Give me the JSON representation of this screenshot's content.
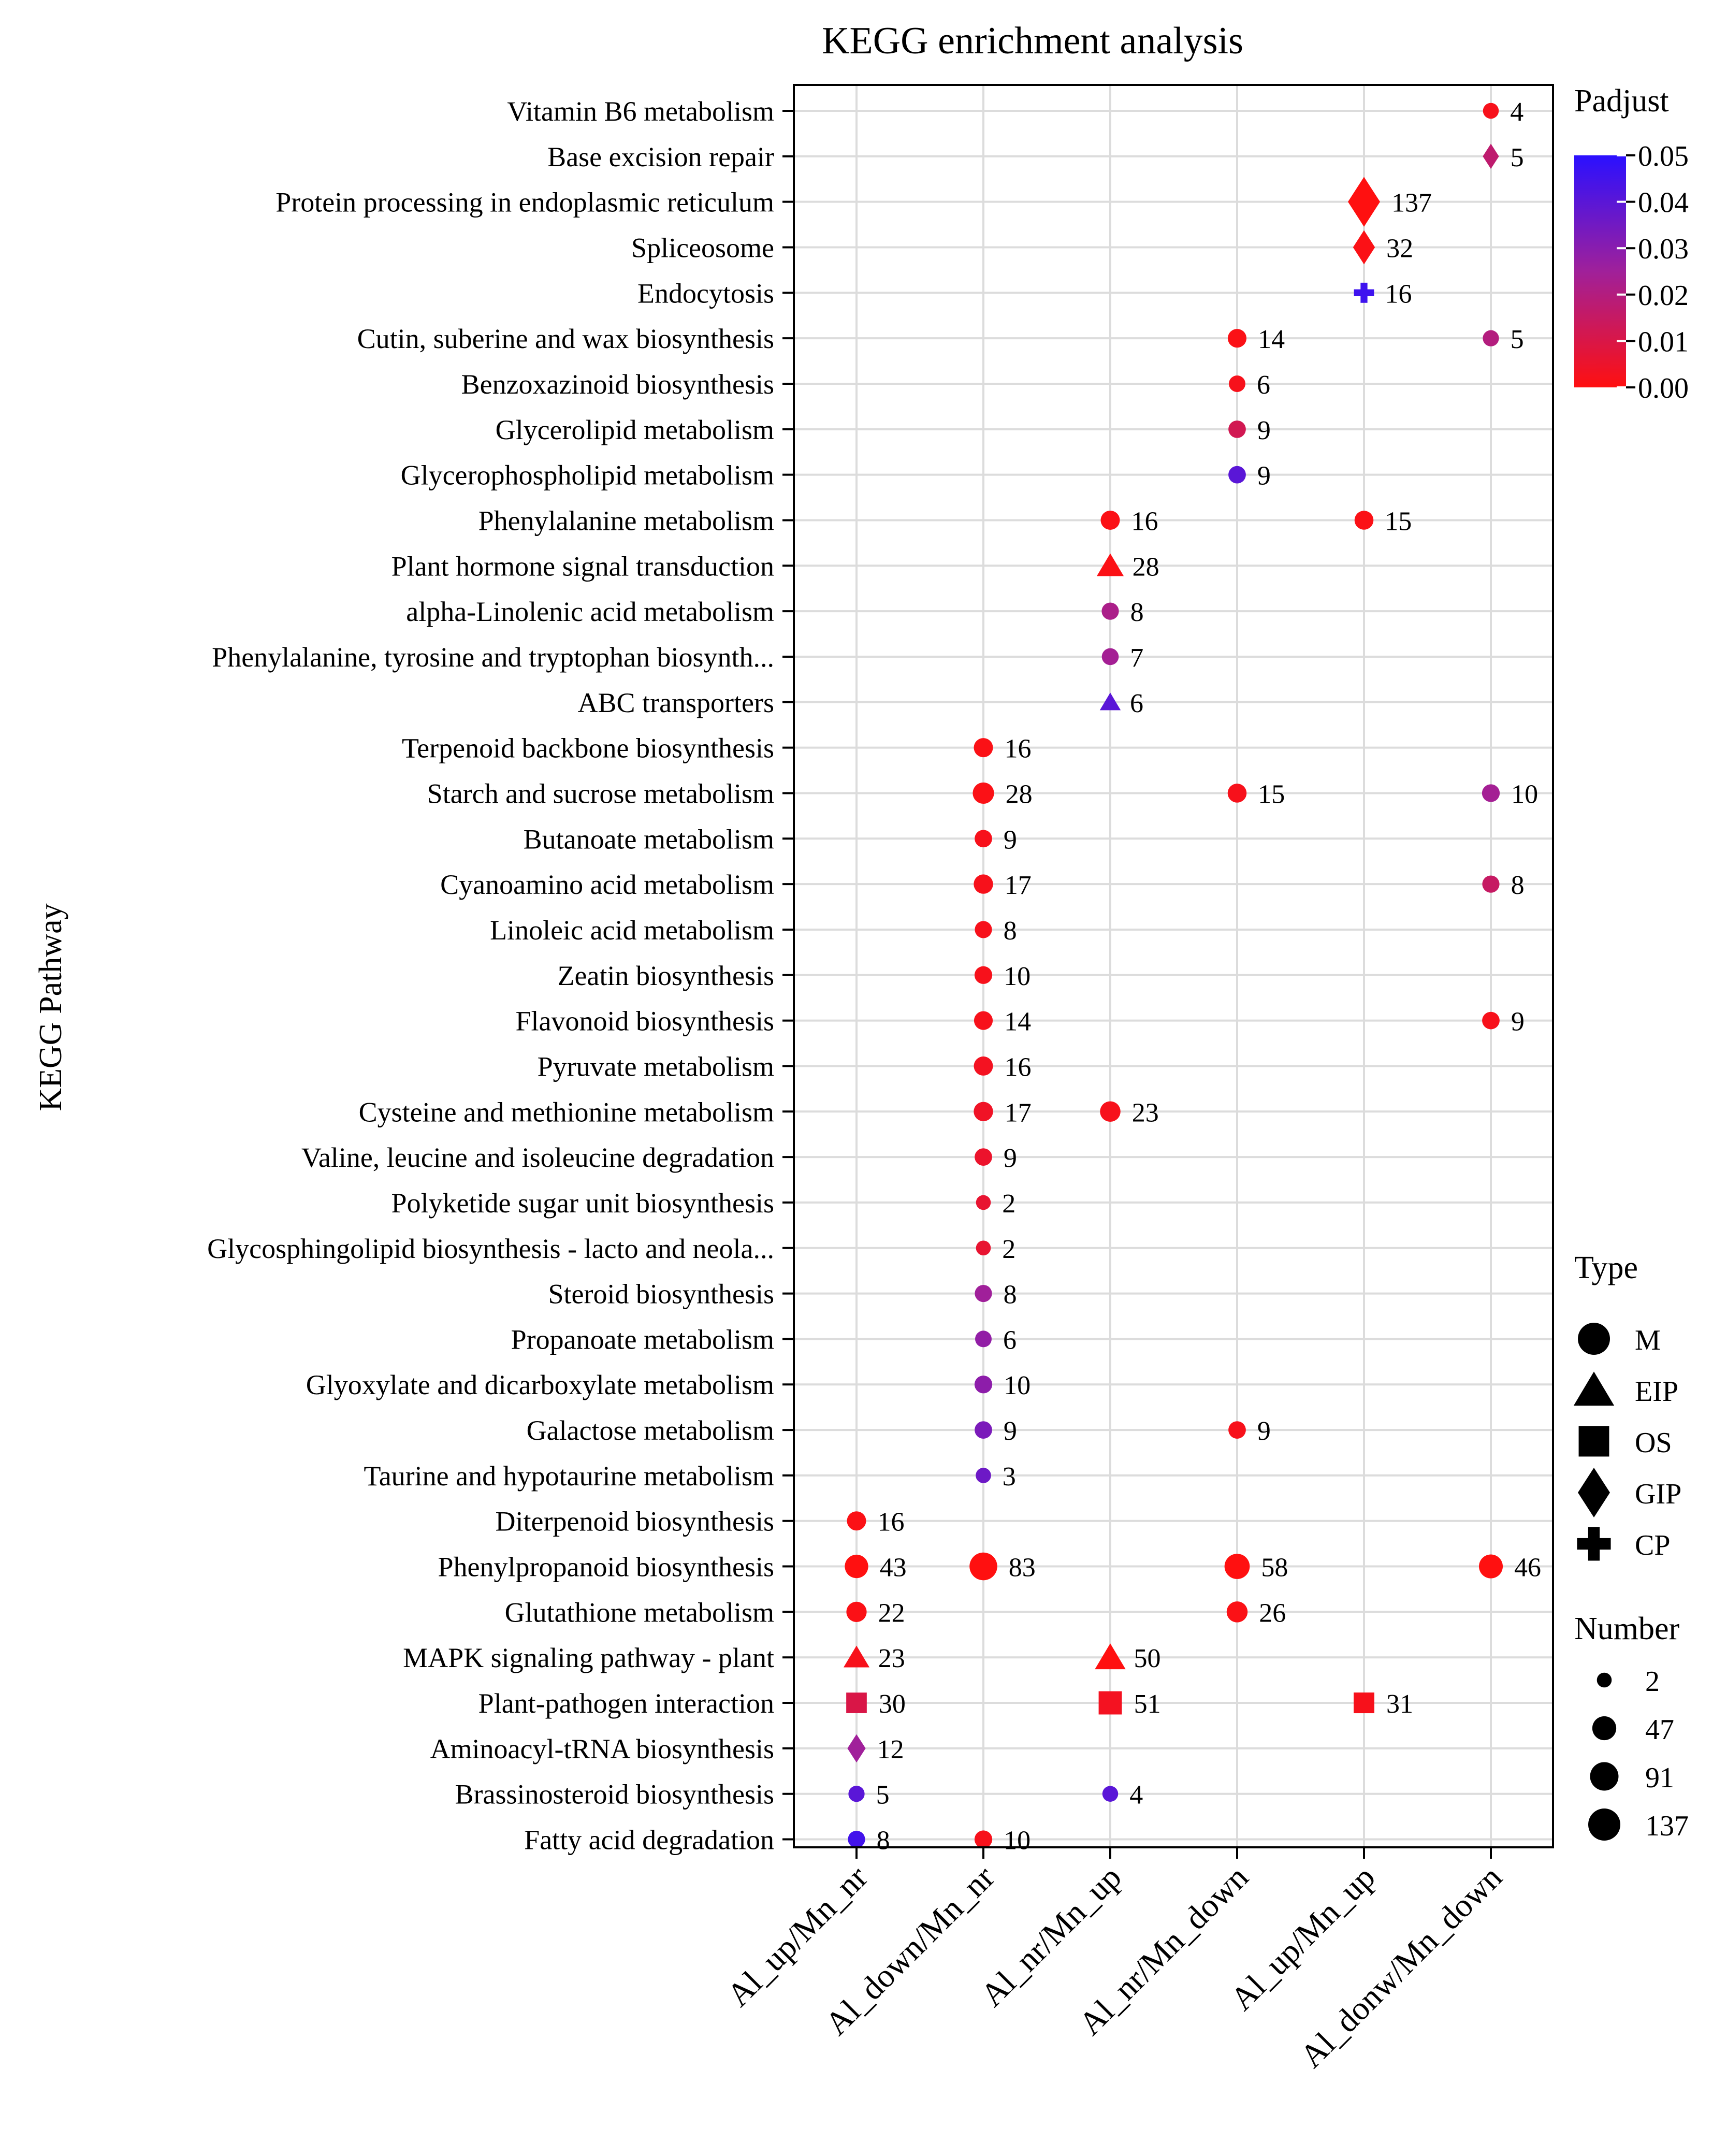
{
  "chart_data": {
    "type": "scatter",
    "title": "KEGG enrichment analysis",
    "ylabel": "KEGG Pathway",
    "xlabel": "",
    "grid": true,
    "groups": [
      "Al_up/Mn_nr",
      "Al_down/Mn_nr",
      "Al_nr/Mn_up",
      "Al_nr/Mn_down",
      "Al_up/Mn_up",
      "Al_donw/Mn_down"
    ],
    "pathways": [
      "Vitamin B6 metabolism",
      "Base excision repair",
      "Protein processing in endoplasmic reticulum",
      "Spliceosome",
      "Endocytosis",
      "Cutin, suberine and wax biosynthesis",
      "Benzoxazinoid biosynthesis",
      "Glycerolipid metabolism",
      "Glycerophospholipid metabolism",
      "Phenylalanine metabolism",
      "Plant hormone signal transduction",
      "alpha-Linolenic acid metabolism",
      "Phenylalanine, tyrosine and tryptophan biosynth...",
      "ABC transporters",
      "Terpenoid backbone biosynthesis",
      "Starch and sucrose metabolism",
      "Butanoate metabolism",
      "Cyanoamino acid metabolism",
      "Linoleic acid metabolism",
      "Zeatin biosynthesis",
      "Flavonoid biosynthesis",
      "Pyruvate metabolism",
      "Cysteine and methionine metabolism",
      "Valine, leucine and isoleucine degradation",
      "Polyketide sugar unit biosynthesis",
      "Glycosphingolipid biosynthesis - lacto and neola...",
      "Steroid biosynthesis",
      "Propanoate metabolism",
      "Glyoxylate and dicarboxylate metabolism",
      "Galactose metabolism",
      "Taurine and hypotaurine metabolism",
      "Diterpenoid biosynthesis",
      "Phenylpropanoid biosynthesis",
      "Glutathione metabolism",
      "MAPK signaling pathway - plant",
      "Plant-pathogen interaction",
      "Aminoacyl-tRNA biosynthesis",
      "Brassinosteroid biosynthesis",
      "Fatty acid degradation"
    ],
    "points": [
      {
        "pathway": 0,
        "group": 5,
        "number": 4,
        "padjust": 0.002,
        "type": "M"
      },
      {
        "pathway": 1,
        "group": 5,
        "number": 5,
        "padjust": 0.017,
        "type": "GIP"
      },
      {
        "pathway": 2,
        "group": 4,
        "number": 137,
        "padjust": 0.0,
        "type": "GIP"
      },
      {
        "pathway": 3,
        "group": 4,
        "number": 32,
        "padjust": 0.001,
        "type": "GIP"
      },
      {
        "pathway": 4,
        "group": 4,
        "number": 16,
        "padjust": 0.046,
        "type": "CP"
      },
      {
        "pathway": 5,
        "group": 3,
        "number": 14,
        "padjust": 0.001,
        "type": "M"
      },
      {
        "pathway": 5,
        "group": 5,
        "number": 5,
        "padjust": 0.02,
        "type": "M"
      },
      {
        "pathway": 6,
        "group": 3,
        "number": 6,
        "padjust": 0.002,
        "type": "M"
      },
      {
        "pathway": 7,
        "group": 3,
        "number": 9,
        "padjust": 0.012,
        "type": "M"
      },
      {
        "pathway": 8,
        "group": 3,
        "number": 9,
        "padjust": 0.04,
        "type": "M"
      },
      {
        "pathway": 9,
        "group": 2,
        "number": 16,
        "padjust": 0.001,
        "type": "M"
      },
      {
        "pathway": 9,
        "group": 4,
        "number": 15,
        "padjust": 0.001,
        "type": "M"
      },
      {
        "pathway": 10,
        "group": 2,
        "number": 28,
        "padjust": 0.001,
        "type": "EIP"
      },
      {
        "pathway": 11,
        "group": 2,
        "number": 8,
        "padjust": 0.022,
        "type": "M"
      },
      {
        "pathway": 12,
        "group": 2,
        "number": 7,
        "padjust": 0.024,
        "type": "M"
      },
      {
        "pathway": 13,
        "group": 2,
        "number": 6,
        "padjust": 0.04,
        "type": "EIP"
      },
      {
        "pathway": 14,
        "group": 1,
        "number": 16,
        "padjust": 0.001,
        "type": "M"
      },
      {
        "pathway": 15,
        "group": 1,
        "number": 28,
        "padjust": 0.001,
        "type": "M"
      },
      {
        "pathway": 15,
        "group": 3,
        "number": 15,
        "padjust": 0.002,
        "type": "M"
      },
      {
        "pathway": 15,
        "group": 5,
        "number": 10,
        "padjust": 0.024,
        "type": "M"
      },
      {
        "pathway": 16,
        "group": 1,
        "number": 9,
        "padjust": 0.002,
        "type": "M"
      },
      {
        "pathway": 17,
        "group": 1,
        "number": 17,
        "padjust": 0.002,
        "type": "M"
      },
      {
        "pathway": 17,
        "group": 5,
        "number": 8,
        "padjust": 0.015,
        "type": "M"
      },
      {
        "pathway": 18,
        "group": 1,
        "number": 8,
        "padjust": 0.002,
        "type": "M"
      },
      {
        "pathway": 19,
        "group": 1,
        "number": 10,
        "padjust": 0.002,
        "type": "M"
      },
      {
        "pathway": 20,
        "group": 1,
        "number": 14,
        "padjust": 0.002,
        "type": "M"
      },
      {
        "pathway": 20,
        "group": 5,
        "number": 9,
        "padjust": 0.002,
        "type": "M"
      },
      {
        "pathway": 21,
        "group": 1,
        "number": 16,
        "padjust": 0.003,
        "type": "M"
      },
      {
        "pathway": 22,
        "group": 1,
        "number": 17,
        "padjust": 0.004,
        "type": "M"
      },
      {
        "pathway": 22,
        "group": 2,
        "number": 23,
        "padjust": 0.002,
        "type": "M"
      },
      {
        "pathway": 23,
        "group": 1,
        "number": 9,
        "padjust": 0.005,
        "type": "M"
      },
      {
        "pathway": 24,
        "group": 1,
        "number": 2,
        "padjust": 0.006,
        "type": "M"
      },
      {
        "pathway": 25,
        "group": 1,
        "number": 2,
        "padjust": 0.006,
        "type": "M"
      },
      {
        "pathway": 26,
        "group": 1,
        "number": 8,
        "padjust": 0.025,
        "type": "M"
      },
      {
        "pathway": 27,
        "group": 1,
        "number": 6,
        "padjust": 0.028,
        "type": "M"
      },
      {
        "pathway": 28,
        "group": 1,
        "number": 10,
        "padjust": 0.029,
        "type": "M"
      },
      {
        "pathway": 29,
        "group": 1,
        "number": 9,
        "padjust": 0.033,
        "type": "M"
      },
      {
        "pathway": 29,
        "group": 3,
        "number": 9,
        "padjust": 0.002,
        "type": "M"
      },
      {
        "pathway": 30,
        "group": 1,
        "number": 3,
        "padjust": 0.036,
        "type": "M"
      },
      {
        "pathway": 31,
        "group": 0,
        "number": 16,
        "padjust": 0.001,
        "type": "M"
      },
      {
        "pathway": 32,
        "group": 0,
        "number": 43,
        "padjust": 0.0,
        "type": "M"
      },
      {
        "pathway": 32,
        "group": 1,
        "number": 83,
        "padjust": 0.0,
        "type": "M"
      },
      {
        "pathway": 32,
        "group": 3,
        "number": 58,
        "padjust": 0.0,
        "type": "M"
      },
      {
        "pathway": 32,
        "group": 5,
        "number": 46,
        "padjust": 0.0,
        "type": "M"
      },
      {
        "pathway": 33,
        "group": 0,
        "number": 22,
        "padjust": 0.001,
        "type": "M"
      },
      {
        "pathway": 33,
        "group": 3,
        "number": 26,
        "padjust": 0.001,
        "type": "M"
      },
      {
        "pathway": 34,
        "group": 0,
        "number": 23,
        "padjust": 0.002,
        "type": "EIP"
      },
      {
        "pathway": 34,
        "group": 2,
        "number": 50,
        "padjust": 0.0,
        "type": "EIP"
      },
      {
        "pathway": 35,
        "group": 0,
        "number": 30,
        "padjust": 0.01,
        "type": "OS"
      },
      {
        "pathway": 35,
        "group": 2,
        "number": 51,
        "padjust": 0.003,
        "type": "OS"
      },
      {
        "pathway": 35,
        "group": 4,
        "number": 31,
        "padjust": 0.002,
        "type": "OS"
      },
      {
        "pathway": 36,
        "group": 0,
        "number": 12,
        "padjust": 0.025,
        "type": "GIP"
      },
      {
        "pathway": 37,
        "group": 0,
        "number": 5,
        "padjust": 0.04,
        "type": "M"
      },
      {
        "pathway": 37,
        "group": 2,
        "number": 4,
        "padjust": 0.04,
        "type": "M"
      },
      {
        "pathway": 38,
        "group": 0,
        "number": 8,
        "padjust": 0.045,
        "type": "M"
      },
      {
        "pathway": 38,
        "group": 1,
        "number": 10,
        "padjust": 0.002,
        "type": "M"
      }
    ],
    "colorbar": {
      "title": "Padjust",
      "range": [
        0.0,
        0.05
      ],
      "ticks": [
        "0.05",
        "0.04",
        "0.03",
        "0.02",
        "0.01",
        "0.00"
      ],
      "low_color": "#ff1010",
      "mid_color": "#a0209a",
      "high_color": "#2b10ff"
    },
    "type_legend": {
      "title": "Type",
      "items": [
        {
          "label": "M",
          "shape": "circle"
        },
        {
          "label": "EIP",
          "shape": "triangle"
        },
        {
          "label": "OS",
          "shape": "square"
        },
        {
          "label": "GIP",
          "shape": "diamond"
        },
        {
          "label": "CP",
          "shape": "plus"
        }
      ]
    },
    "size_legend": {
      "title": "Number",
      "items": [
        {
          "label": "2",
          "value": 2
        },
        {
          "label": "47",
          "value": 47
        },
        {
          "label": "91",
          "value": 91
        },
        {
          "label": "137",
          "value": 137
        }
      ]
    }
  }
}
